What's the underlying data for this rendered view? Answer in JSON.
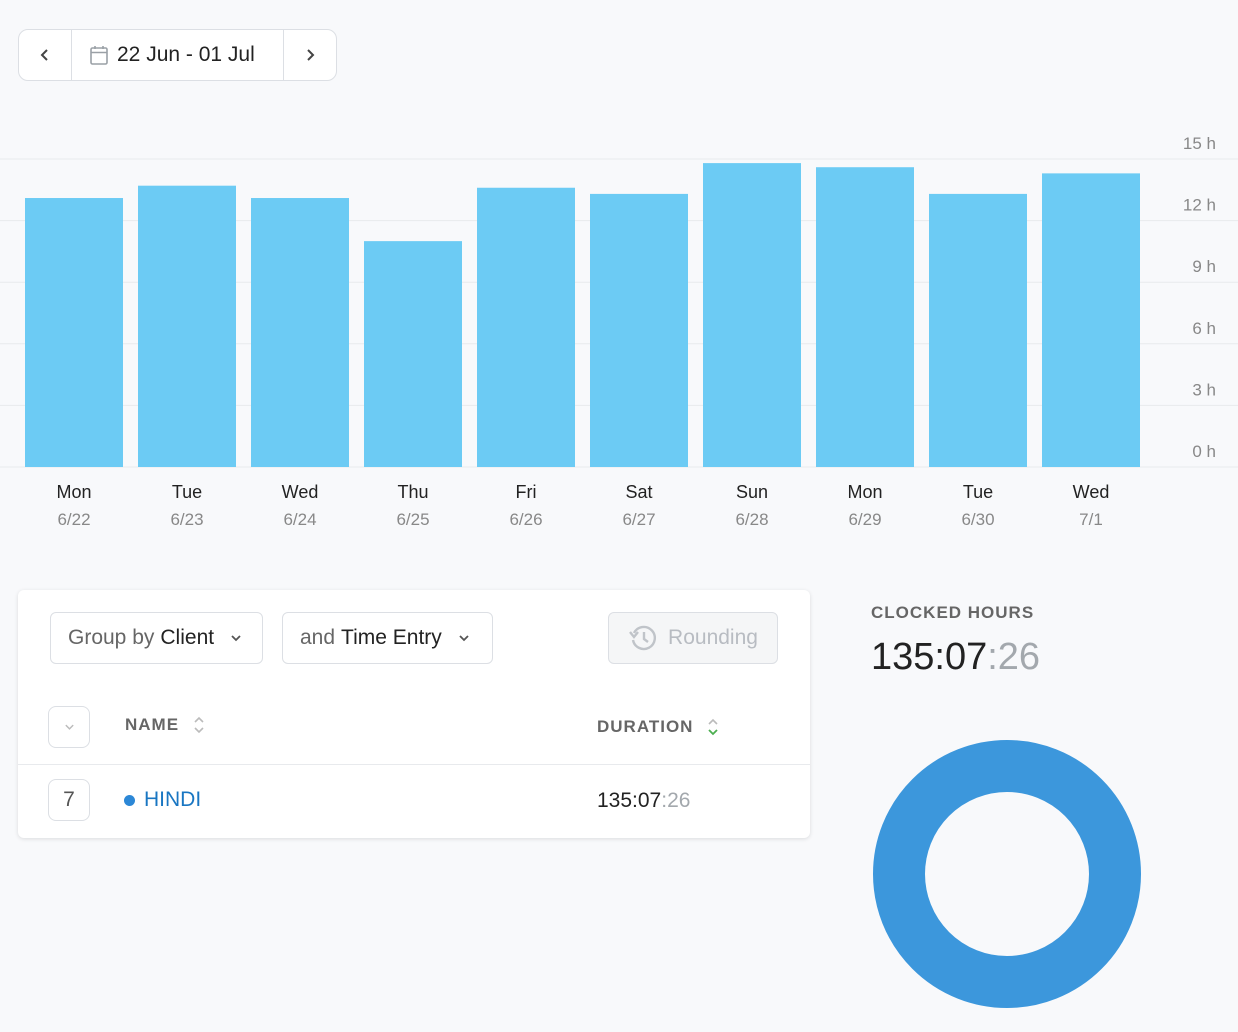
{
  "date_range": {
    "label": "22 Jun - 01 Jul"
  },
  "chart_data": {
    "type": "bar",
    "categories": [
      "Mon 6/22",
      "Tue 6/23",
      "Wed 6/24",
      "Thu 6/25",
      "Fri 6/26",
      "Sat 6/27",
      "Sun 6/28",
      "Mon 6/29",
      "Tue 6/30",
      "Wed 7/1"
    ],
    "day_labels": [
      "Mon",
      "Tue",
      "Wed",
      "Thu",
      "Fri",
      "Sat",
      "Sun",
      "Mon",
      "Tue",
      "Wed"
    ],
    "date_labels": [
      "6/22",
      "6/23",
      "6/24",
      "6/25",
      "6/26",
      "6/27",
      "6/28",
      "6/29",
      "6/30",
      "7/1"
    ],
    "values": [
      13.1,
      13.7,
      13.1,
      11.0,
      13.6,
      13.3,
      14.8,
      14.6,
      13.3,
      14.3
    ],
    "y_ticks": [
      "0 h",
      "3 h",
      "6 h",
      "9 h",
      "12 h",
      "15 h"
    ],
    "ylim": [
      0,
      15
    ],
    "bar_color": "#6ccbf4",
    "grid": true
  },
  "report": {
    "group_by_prefix": "Group by",
    "group_by_value": "Client",
    "then_prefix": "and",
    "then_value": "Time Entry",
    "rounding_label": "Rounding",
    "columns": {
      "name": "NAME",
      "duration": "DURATION"
    },
    "rows": [
      {
        "count": "7",
        "name": "HINDI",
        "duration_main": "135:07",
        "duration_sec": ":26",
        "color": "#2c87d6"
      }
    ]
  },
  "summary": {
    "label": "CLOCKED HOURS",
    "value_main": "135:07",
    "value_sec": ":26"
  },
  "donut": {
    "slices": [
      {
        "name": "HINDI",
        "value": 1,
        "color": "#3c97dc"
      }
    ]
  }
}
